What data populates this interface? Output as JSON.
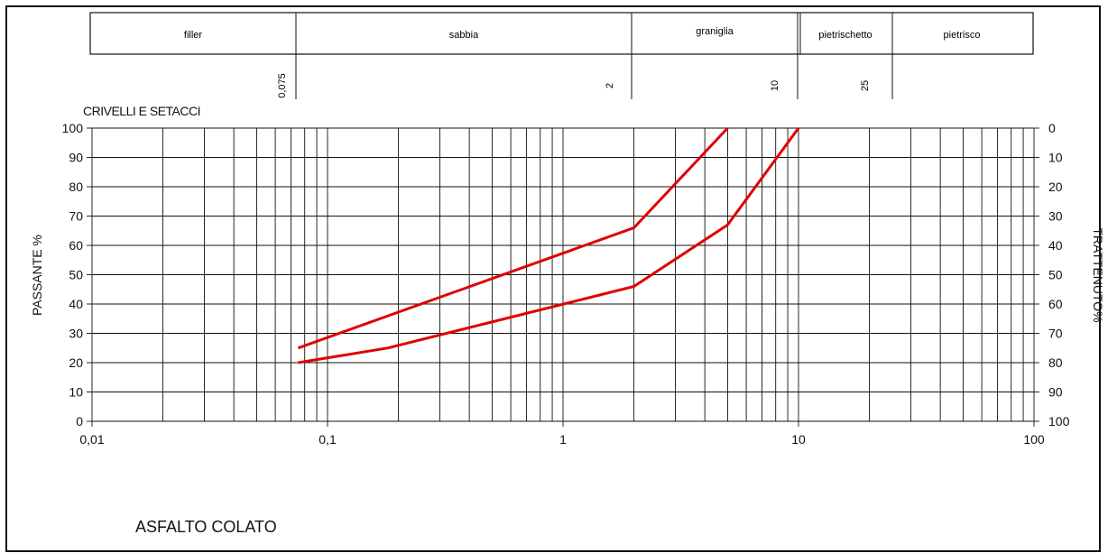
{
  "chart_data": {
    "type": "line",
    "title": "ASFALTO COLATO",
    "header_label": "CRIVELLI E SETACCI",
    "ylabel": "PASSANTE %",
    "y2label": "TRATTENUTO%",
    "x_scale": "log",
    "xlim": [
      0.01,
      100
    ],
    "ylim": [
      0,
      100
    ],
    "grid": true,
    "x_ticks": [
      "0,01",
      "0,1",
      "1",
      "10",
      "100"
    ],
    "y_ticks": [
      "0",
      "10",
      "20",
      "30",
      "40",
      "50",
      "60",
      "70",
      "80",
      "90",
      "100"
    ],
    "y2_ticks": [
      "100",
      "90",
      "80",
      "70",
      "60",
      "50",
      "40",
      "30",
      "20",
      "10",
      "0"
    ],
    "categories_table": {
      "names": [
        "filler",
        "sabbia",
        "graniglia",
        "pietrischetto",
        "pietrisco"
      ],
      "sieve_values": [
        "0,075",
        "2",
        "10",
        "25"
      ]
    },
    "series": [
      {
        "x": [
          0.075,
          2,
          5
        ],
        "y": [
          25,
          66,
          100
        ]
      },
      {
        "x": [
          0.075,
          0.18,
          2,
          5,
          10
        ],
        "y": [
          20,
          25,
          46,
          67,
          100
        ]
      }
    ],
    "line_color": "#e00000"
  }
}
